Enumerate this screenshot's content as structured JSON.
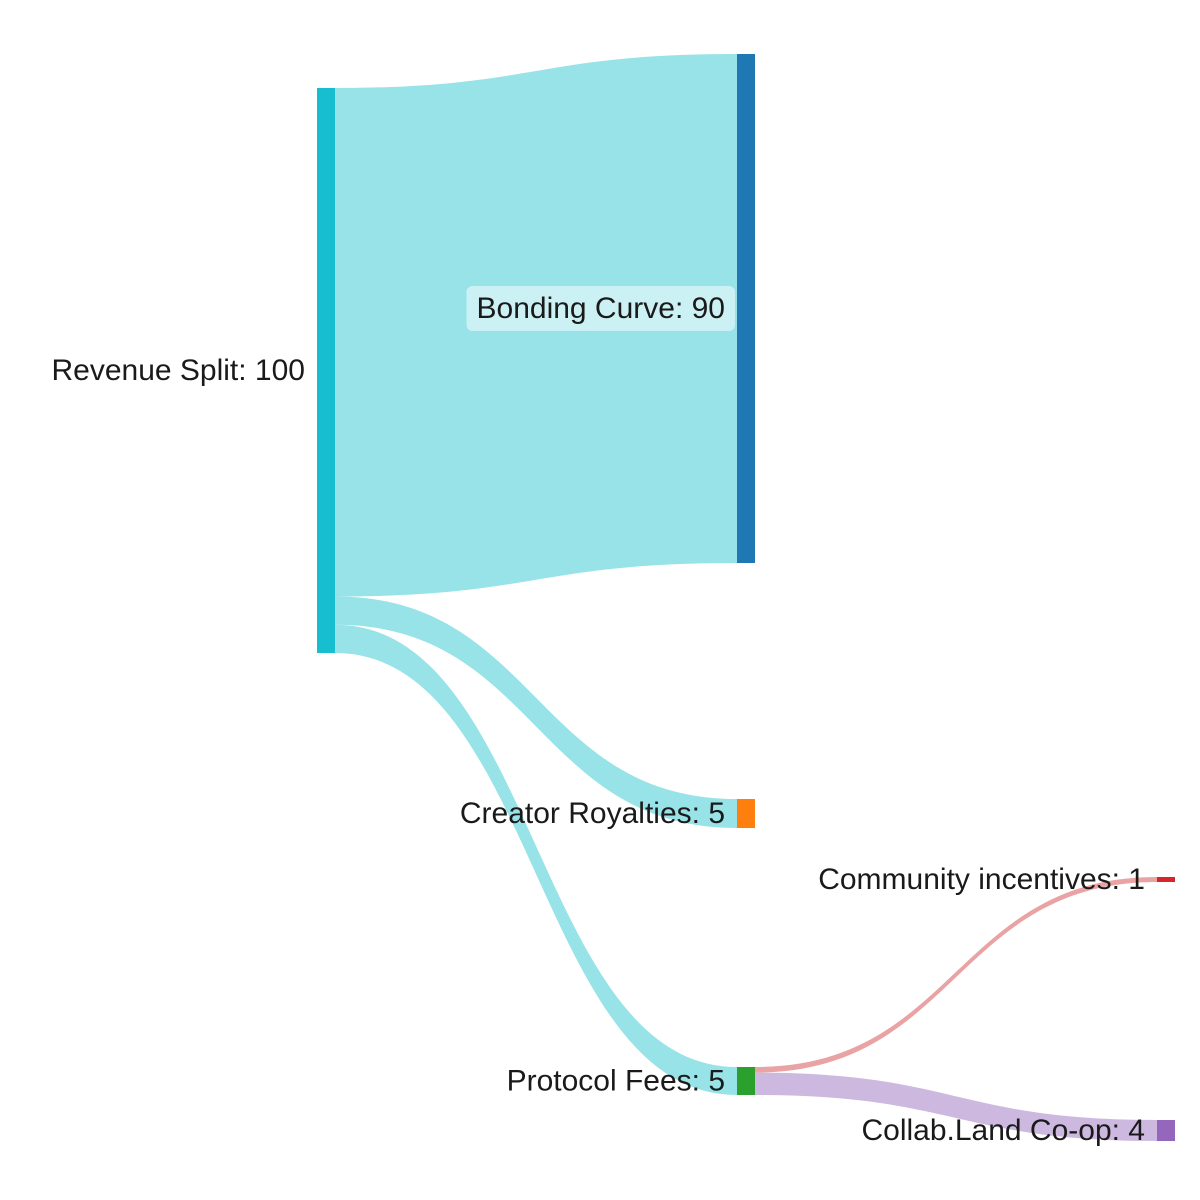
{
  "chart_data": {
    "type": "sankey",
    "nodes": [
      {
        "id": "revenue",
        "name": "Revenue Split",
        "value": 100,
        "color": "#17becf"
      },
      {
        "id": "bonding",
        "name": "Bonding Curve",
        "value": 90,
        "color": "#1f77b4"
      },
      {
        "id": "creator",
        "name": "Creator Royalties",
        "value": 5,
        "color": "#ff7f0e"
      },
      {
        "id": "protocol",
        "name": "Protocol Fees",
        "value": 5,
        "color": "#2ca02c"
      },
      {
        "id": "community",
        "name": "Community incentives",
        "value": 1,
        "color": "#d62728"
      },
      {
        "id": "collab",
        "name": "Collab.Land Co-op",
        "value": 4,
        "color": "#9467bd"
      }
    ],
    "links": [
      {
        "source": "revenue",
        "target": "bonding",
        "value": 90,
        "color": "#97e3e8"
      },
      {
        "source": "revenue",
        "target": "creator",
        "value": 5,
        "color": "#97e3e8"
      },
      {
        "source": "revenue",
        "target": "protocol",
        "value": 5,
        "color": "#97e3e8"
      },
      {
        "source": "protocol",
        "target": "community",
        "value": 1,
        "color": "#eaa3a4"
      },
      {
        "source": "protocol",
        "target": "collab",
        "value": 4,
        "color": "#cdb9e0"
      }
    ]
  }
}
